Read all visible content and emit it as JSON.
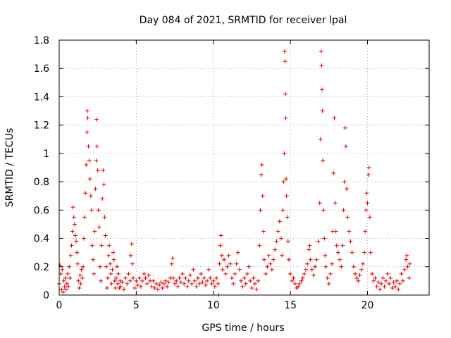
{
  "chart_data": {
    "type": "scatter",
    "title": "Day 084 of 2021, SRMTID for receiver lpal",
    "xlabel": "GPS time / hours",
    "ylabel": "SRMTID / TECUs",
    "xlim": [
      0,
      24
    ],
    "ylim": [
      0,
      1.8
    ],
    "xticks": [
      0,
      5,
      10,
      15,
      20
    ],
    "xtick_labels": [
      "0",
      "5",
      "10",
      "15",
      "20"
    ],
    "yticks": [
      0,
      0.2,
      0.4,
      0.6,
      0.8,
      1.0,
      1.2,
      1.4,
      1.6,
      1.8
    ],
    "ytick_labels": [
      "0",
      "0.2",
      "0.4",
      "0.6",
      "0.8",
      "1",
      "1.2",
      "1.4",
      "1.6",
      "1.8"
    ],
    "grid": true,
    "marker": "+",
    "color": "#e00000",
    "series": [
      {
        "name": "SRMTID",
        "points": [
          [
            0.0,
            0.08
          ],
          [
            0.05,
            0.21
          ],
          [
            0.1,
            0.15
          ],
          [
            0.15,
            0.04
          ],
          [
            0.2,
            0.18
          ],
          [
            0.25,
            0.02
          ],
          [
            0.3,
            0.1
          ],
          [
            0.35,
            0.06
          ],
          [
            0.4,
            0.12
          ],
          [
            0.45,
            0.04
          ],
          [
            0.5,
            0.08
          ],
          [
            0.55,
            0.15
          ],
          [
            0.6,
            0.06
          ],
          [
            0.65,
            0.2
          ],
          [
            0.7,
            0.12
          ],
          [
            0.75,
            0.28
          ],
          [
            0.8,
            0.35
          ],
          [
            0.85,
            0.45
          ],
          [
            0.9,
            0.62
          ],
          [
            0.95,
            0.55
          ],
          [
            1.0,
            0.5
          ],
          [
            1.05,
            0.42
          ],
          [
            1.1,
            0.38
          ],
          [
            1.15,
            0.3
          ],
          [
            1.2,
            0.22
          ],
          [
            1.25,
            0.1
          ],
          [
            1.3,
            0.05
          ],
          [
            1.35,
            0.14
          ],
          [
            1.4,
            0.08
          ],
          [
            1.45,
            0.18
          ],
          [
            1.5,
            0.12
          ],
          [
            1.55,
            0.2
          ],
          [
            1.6,
            0.4
          ],
          [
            1.65,
            0.55
          ],
          [
            1.7,
            0.72
          ],
          [
            1.75,
            0.92
          ],
          [
            1.8,
            1.15
          ],
          [
            1.82,
            1.3
          ],
          [
            1.85,
            1.25
          ],
          [
            1.9,
            1.05
          ],
          [
            1.95,
            0.95
          ],
          [
            2.0,
            0.82
          ],
          [
            2.05,
            0.7
          ],
          [
            2.1,
            0.6
          ],
          [
            2.15,
            0.35
          ],
          [
            2.2,
            0.25
          ],
          [
            2.25,
            0.15
          ],
          [
            2.3,
            0.45
          ],
          [
            2.35,
            0.75
          ],
          [
            2.4,
            0.95
          ],
          [
            2.42,
            1.24
          ],
          [
            2.45,
            1.05
          ],
          [
            2.5,
            0.88
          ],
          [
            2.55,
            0.6
          ],
          [
            2.6,
            0.48
          ],
          [
            2.65,
            0.2
          ],
          [
            2.7,
            0.1
          ],
          [
            2.75,
            0.35
          ],
          [
            2.8,
            0.68
          ],
          [
            2.85,
            0.88
          ],
          [
            2.9,
            0.78
          ],
          [
            2.95,
            0.55
          ],
          [
            3.0,
            0.42
          ],
          [
            3.05,
            0.2
          ],
          [
            3.1,
            0.05
          ],
          [
            3.15,
            0.12
          ],
          [
            3.2,
            0.28
          ],
          [
            3.25,
            0.35
          ],
          [
            3.3,
            0.22
          ],
          [
            3.35,
            0.15
          ],
          [
            3.4,
            0.08
          ],
          [
            3.45,
            0.18
          ],
          [
            3.5,
            0.3
          ],
          [
            3.55,
            0.25
          ],
          [
            3.6,
            0.1
          ],
          [
            3.65,
            0.05
          ],
          [
            3.7,
            0.12
          ],
          [
            3.75,
            0.2
          ],
          [
            3.8,
            0.08
          ],
          [
            3.85,
            0.15
          ],
          [
            3.9,
            0.05
          ],
          [
            3.95,
            0.1
          ],
          [
            4.0,
            0.06
          ],
          [
            4.1,
            0.09
          ],
          [
            4.2,
            0.04
          ],
          [
            4.3,
            0.12
          ],
          [
            4.4,
            0.08
          ],
          [
            4.5,
            0.15
          ],
          [
            4.6,
            0.1
          ],
          [
            4.65,
            0.28
          ],
          [
            4.7,
            0.36
          ],
          [
            4.75,
            0.22
          ],
          [
            4.8,
            0.12
          ],
          [
            4.9,
            0.05
          ],
          [
            5.0,
            0.1
          ],
          [
            5.1,
            0.07
          ],
          [
            5.2,
            0.12
          ],
          [
            5.3,
            0.06
          ],
          [
            5.4,
            0.1
          ],
          [
            5.5,
            0.15
          ],
          [
            5.6,
            0.12
          ],
          [
            5.7,
            0.08
          ],
          [
            5.8,
            0.14
          ],
          [
            5.9,
            0.1
          ],
          [
            6.0,
            0.06
          ],
          [
            6.1,
            0.1
          ],
          [
            6.2,
            0.05
          ],
          [
            6.3,
            0.08
          ],
          [
            6.4,
            0.04
          ],
          [
            6.5,
            0.07
          ],
          [
            6.6,
            0.09
          ],
          [
            6.7,
            0.05
          ],
          [
            6.8,
            0.08
          ],
          [
            6.9,
            0.1
          ],
          [
            7.0,
            0.06
          ],
          [
            7.1,
            0.09
          ],
          [
            7.2,
            0.12
          ],
          [
            7.3,
            0.22
          ],
          [
            7.35,
            0.26
          ],
          [
            7.4,
            0.12
          ],
          [
            7.5,
            0.08
          ],
          [
            7.6,
            0.1
          ],
          [
            7.7,
            0.06
          ],
          [
            7.8,
            0.12
          ],
          [
            7.9,
            0.09
          ],
          [
            8.0,
            0.15
          ],
          [
            8.1,
            0.08
          ],
          [
            8.2,
            0.12
          ],
          [
            8.3,
            0.06
          ],
          [
            8.4,
            0.1
          ],
          [
            8.5,
            0.14
          ],
          [
            8.6,
            0.08
          ],
          [
            8.7,
            0.18
          ],
          [
            8.8,
            0.1
          ],
          [
            8.9,
            0.06
          ],
          [
            9.0,
            0.12
          ],
          [
            9.1,
            0.08
          ],
          [
            9.2,
            0.15
          ],
          [
            9.3,
            0.09
          ],
          [
            9.4,
            0.12
          ],
          [
            9.5,
            0.07
          ],
          [
            9.6,
            0.1
          ],
          [
            9.7,
            0.18
          ],
          [
            9.8,
            0.12
          ],
          [
            9.9,
            0.08
          ],
          [
            10.0,
            0.1
          ],
          [
            10.1,
            0.06
          ],
          [
            10.2,
            0.12
          ],
          [
            10.3,
            0.08
          ],
          [
            10.35,
            0.0
          ],
          [
            10.4,
            0.22
          ],
          [
            10.45,
            0.35
          ],
          [
            10.5,
            0.42
          ],
          [
            10.55,
            0.28
          ],
          [
            10.6,
            0.18
          ],
          [
            10.7,
            0.25
          ],
          [
            10.8,
            0.15
          ],
          [
            10.9,
            0.2
          ],
          [
            11.0,
            0.28
          ],
          [
            11.1,
            0.22
          ],
          [
            11.2,
            0.12
          ],
          [
            11.3,
            0.08
          ],
          [
            11.4,
            0.15
          ],
          [
            11.5,
            0.22
          ],
          [
            11.6,
            0.3
          ],
          [
            11.7,
            0.18
          ],
          [
            11.8,
            0.1
          ],
          [
            11.9,
            0.06
          ],
          [
            12.0,
            0.12
          ],
          [
            12.1,
            0.08
          ],
          [
            12.2,
            0.15
          ],
          [
            12.3,
            0.2
          ],
          [
            12.4,
            0.1
          ],
          [
            12.5,
            0.05
          ],
          [
            12.6,
            0.12
          ],
          [
            12.7,
            0.08
          ],
          [
            12.8,
            0.04
          ],
          [
            12.9,
            0.1
          ],
          [
            13.0,
            0.35
          ],
          [
            13.05,
            0.6
          ],
          [
            13.1,
            0.85
          ],
          [
            13.15,
            0.92
          ],
          [
            13.2,
            0.7
          ],
          [
            13.25,
            0.45
          ],
          [
            13.3,
            0.25
          ],
          [
            13.4,
            0.15
          ],
          [
            13.5,
            0.2
          ],
          [
            13.6,
            0.28
          ],
          [
            13.7,
            0.22
          ],
          [
            13.8,
            0.18
          ],
          [
            13.9,
            0.25
          ],
          [
            14.0,
            0.32
          ],
          [
            14.1,
            0.38
          ],
          [
            14.2,
            0.45
          ],
          [
            14.3,
            0.52
          ],
          [
            14.4,
            0.4
          ],
          [
            14.45,
            0.28
          ],
          [
            14.5,
            0.6
          ],
          [
            14.55,
            0.8
          ],
          [
            14.6,
            1.0
          ],
          [
            14.62,
            1.72
          ],
          [
            14.65,
            1.65
          ],
          [
            14.68,
            1.42
          ],
          [
            14.7,
            1.25
          ],
          [
            14.72,
            0.82
          ],
          [
            14.75,
            0.7
          ],
          [
            14.8,
            0.55
          ],
          [
            14.85,
            0.38
          ],
          [
            14.9,
            0.25
          ],
          [
            15.0,
            0.15
          ],
          [
            15.1,
            0.1
          ],
          [
            15.2,
            0.12
          ],
          [
            15.3,
            0.08
          ],
          [
            15.4,
            0.05
          ],
          [
            15.5,
            0.06
          ],
          [
            15.6,
            0.08
          ],
          [
            15.7,
            0.1
          ],
          [
            15.8,
            0.12
          ],
          [
            15.9,
            0.15
          ],
          [
            16.0,
            0.18
          ],
          [
            16.1,
            0.22
          ],
          [
            16.2,
            0.32
          ],
          [
            16.25,
            0.35
          ],
          [
            16.3,
            0.25
          ],
          [
            16.4,
            0.18
          ],
          [
            16.5,
            0.14
          ],
          [
            16.6,
            0.2
          ],
          [
            16.7,
            0.25
          ],
          [
            16.8,
            0.38
          ],
          [
            16.9,
            0.65
          ],
          [
            16.95,
            1.1
          ],
          [
            17.0,
            1.72
          ],
          [
            17.02,
            1.62
          ],
          [
            17.05,
            1.45
          ],
          [
            17.08,
            1.3
          ],
          [
            17.1,
            0.95
          ],
          [
            17.15,
            0.6
          ],
          [
            17.2,
            0.4
          ],
          [
            17.25,
            0.28
          ],
          [
            17.3,
            0.2
          ],
          [
            17.4,
            0.12
          ],
          [
            17.5,
            0.08
          ],
          [
            17.6,
            0.15
          ],
          [
            17.7,
            0.22
          ],
          [
            17.75,
            0.45
          ],
          [
            17.8,
            0.86
          ],
          [
            17.85,
            1.25
          ],
          [
            17.9,
            0.65
          ],
          [
            17.95,
            0.45
          ],
          [
            18.0,
            0.35
          ],
          [
            18.1,
            0.3
          ],
          [
            18.2,
            0.25
          ],
          [
            18.3,
            0.2
          ],
          [
            18.4,
            0.35
          ],
          [
            18.45,
            0.6
          ],
          [
            18.5,
            0.8
          ],
          [
            18.55,
            1.18
          ],
          [
            18.6,
            1.05
          ],
          [
            18.65,
            0.75
          ],
          [
            18.7,
            0.55
          ],
          [
            18.8,
            0.45
          ],
          [
            18.9,
            0.38
          ],
          [
            19.0,
            0.3
          ],
          [
            19.1,
            0.2
          ],
          [
            19.2,
            0.15
          ],
          [
            19.3,
            0.12
          ],
          [
            19.4,
            0.1
          ],
          [
            19.5,
            0.14
          ],
          [
            19.6,
            0.18
          ],
          [
            19.7,
            0.22
          ],
          [
            19.8,
            0.3
          ],
          [
            19.85,
            0.45
          ],
          [
            19.9,
            0.6
          ],
          [
            19.95,
            0.72
          ],
          [
            20.0,
            0.65
          ],
          [
            20.05,
            0.85
          ],
          [
            20.1,
            0.9
          ],
          [
            20.15,
            0.55
          ],
          [
            20.2,
            0.3
          ],
          [
            20.3,
            0.15
          ],
          [
            20.4,
            0.1
          ],
          [
            20.5,
            0.12
          ],
          [
            20.6,
            0.06
          ],
          [
            20.7,
            0.09
          ],
          [
            20.8,
            0.04
          ],
          [
            20.9,
            0.08
          ],
          [
            21.0,
            0.12
          ],
          [
            21.1,
            0.06
          ],
          [
            21.2,
            0.1
          ],
          [
            21.3,
            0.15
          ],
          [
            21.4,
            0.08
          ],
          [
            21.5,
            0.12
          ],
          [
            21.6,
            0.05
          ],
          [
            21.7,
            0.09
          ],
          [
            21.8,
            0.06
          ],
          [
            21.9,
            0.1
          ],
          [
            22.0,
            0.04
          ],
          [
            22.1,
            0.08
          ],
          [
            22.2,
            0.15
          ],
          [
            22.3,
            0.1
          ],
          [
            22.4,
            0.18
          ],
          [
            22.5,
            0.25
          ],
          [
            22.55,
            0.28
          ],
          [
            22.6,
            0.2
          ],
          [
            22.7,
            0.12
          ],
          [
            22.75,
            0.22
          ]
        ]
      }
    ]
  }
}
